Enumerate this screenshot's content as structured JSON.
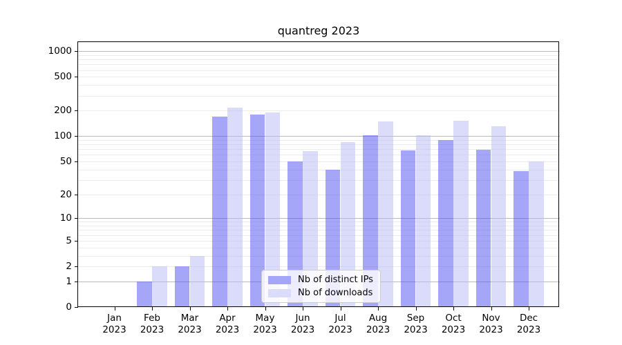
{
  "chart_data": {
    "type": "bar",
    "title": "quantreg 2023",
    "scale": "log1p",
    "grid": true,
    "ylim": [
      0,
      1300
    ],
    "yticks": [
      0,
      1,
      2,
      5,
      10,
      20,
      50,
      100,
      200,
      500,
      1000
    ],
    "categories": [
      "Jan",
      "Feb",
      "Mar",
      "Apr",
      "May",
      "Jun",
      "Jul",
      "Aug",
      "Sep",
      "Oct",
      "Nov",
      "Dec"
    ],
    "year": "2023",
    "series": [
      {
        "name": "Nb of distinct IPs",
        "color": "#a5a6f7",
        "values": [
          0,
          1,
          2,
          170,
          181,
          50,
          40,
          103,
          68,
          90,
          69,
          38
        ]
      },
      {
        "name": "Nb of downloads",
        "color": "#dbdcfa",
        "values": [
          0,
          2,
          3,
          218,
          191,
          66,
          85,
          148,
          103,
          151,
          130,
          50
        ]
      }
    ],
    "legend_position": "lower center",
    "axis_color": "#000000",
    "major_grid_color": "#b9b9b9",
    "minor_grid_color": "#ececec"
  }
}
